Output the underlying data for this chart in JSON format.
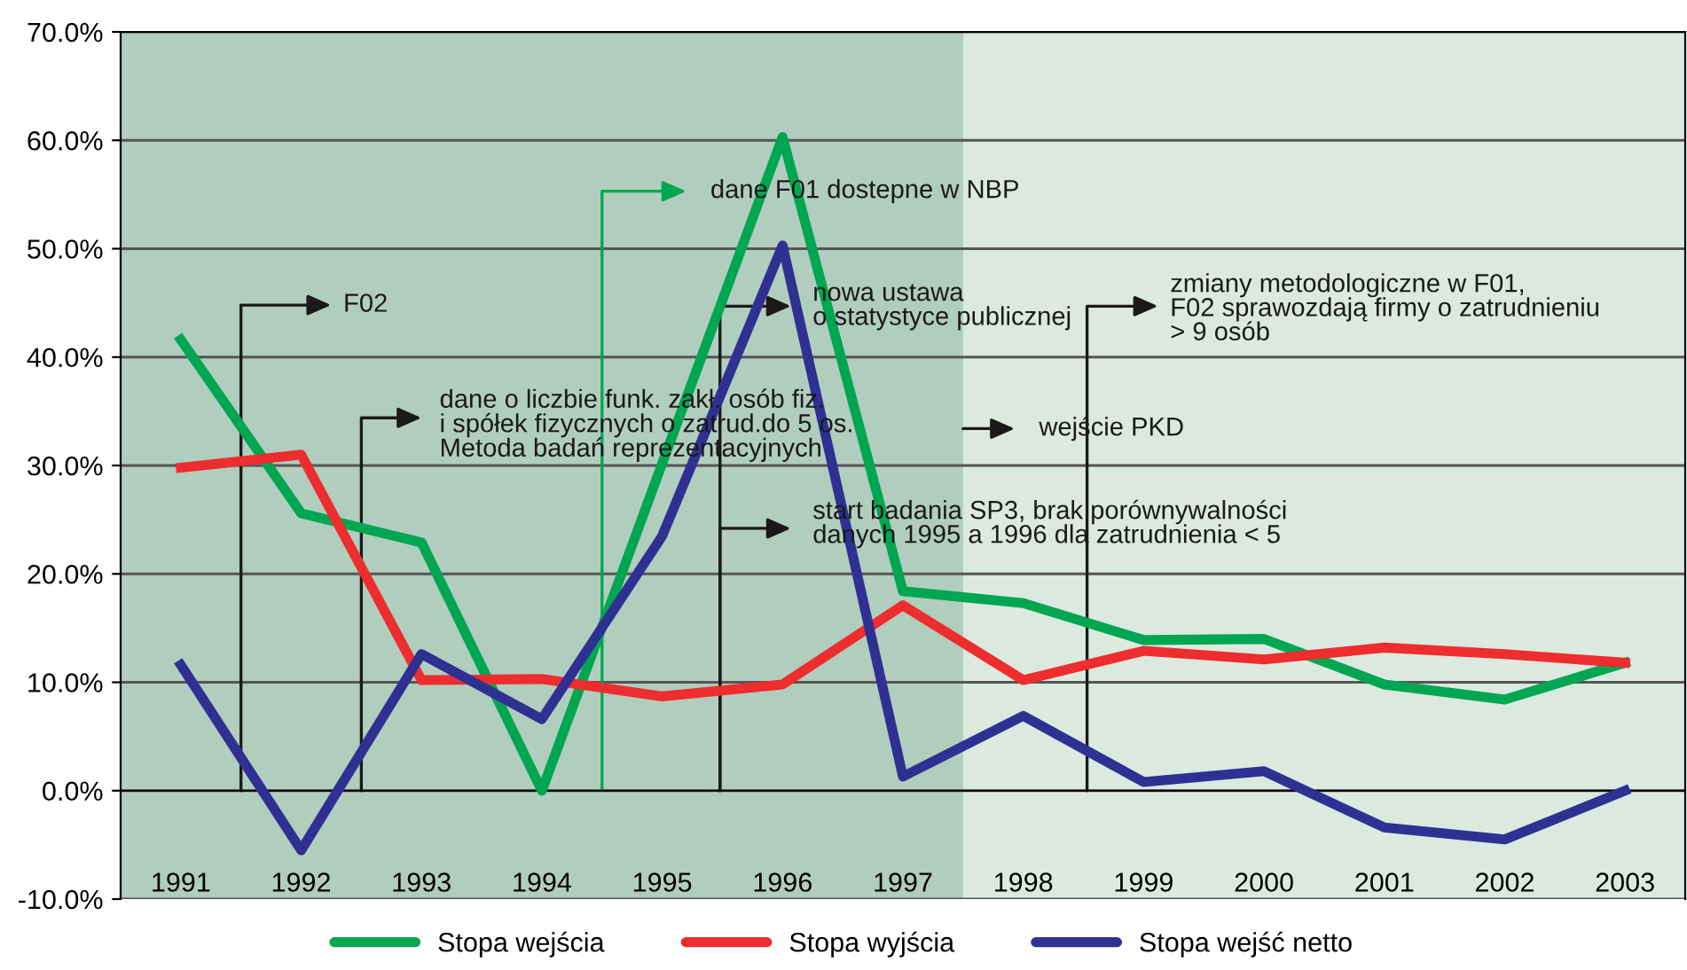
{
  "chart_data": {
    "type": "line",
    "x": [
      1991,
      1992,
      1993,
      1994,
      1995,
      1996,
      1997,
      1998,
      1999,
      2000,
      2001,
      2002,
      2003
    ],
    "series": [
      {
        "name": "Stopa wejścia",
        "color": "#00a651",
        "values": [
          41.6,
          25.6,
          22.9,
          0.0,
          30.2,
          60.3,
          18.4,
          17.3,
          13.9,
          14.0,
          9.8,
          8.4,
          11.8
        ]
      },
      {
        "name": "Stopa wyjścia",
        "color": "#ed2d2e",
        "values": [
          29.8,
          31.0,
          10.2,
          10.3,
          8.7,
          9.8,
          17.1,
          10.2,
          12.9,
          12.1,
          13.2,
          12.6,
          11.8
        ]
      },
      {
        "name": "Stopa wejść netto",
        "color": "#2e3192",
        "values": [
          11.6,
          -5.5,
          12.6,
          6.6,
          23.5,
          50.3,
          1.3,
          6.9,
          0.8,
          1.8,
          -3.4,
          -4.5,
          0.0
        ]
      }
    ],
    "xlim": [
      1990.5,
      2003.5
    ],
    "xticks": [
      1991,
      1992,
      1993,
      1994,
      1995,
      1996,
      1997,
      1998,
      1999,
      2000,
      2001,
      2002,
      2003
    ],
    "ylim": [
      -10,
      70
    ],
    "yticks": [
      {
        "value": -10,
        "label": "-10.0%"
      },
      {
        "value": 0,
        "label": "0.0%"
      },
      {
        "value": 10,
        "label": "10.0%"
      },
      {
        "value": 20,
        "label": "20.0%"
      },
      {
        "value": 30,
        "label": "30.0%"
      },
      {
        "value": 40,
        "label": "40.0%"
      },
      {
        "value": 50,
        "label": "50.0%"
      },
      {
        "value": 60,
        "label": "60.0%"
      },
      {
        "value": 70,
        "label": "70.0%"
      }
    ],
    "bands": [
      {
        "axis": "x",
        "from": 1997.5,
        "to": 2003.5,
        "color": "#dbe9df"
      }
    ],
    "annotations": [
      "F02",
      "dane o liczbie funk. zakł. osób fiz.\ni spółek fizycznych o zatrud.do 5 os.\nMetoda badań reprezentacyjnych",
      "dane F01 dostepne w NBP",
      "nowa ustawa\no statystyce publicznej",
      "start badania SP3, brak porównywalności\ndanych 1995 a 1996 dla zatrudnienia < 5",
      "wejście PKD",
      "zmiany metodologiczne w F01,\nF02 sprawozdają firmy o zatrudnieniu\n> 9 osób"
    ],
    "grid": "y",
    "legend": "bottom",
    "marker": "none",
    "line_style": "solid"
  }
}
